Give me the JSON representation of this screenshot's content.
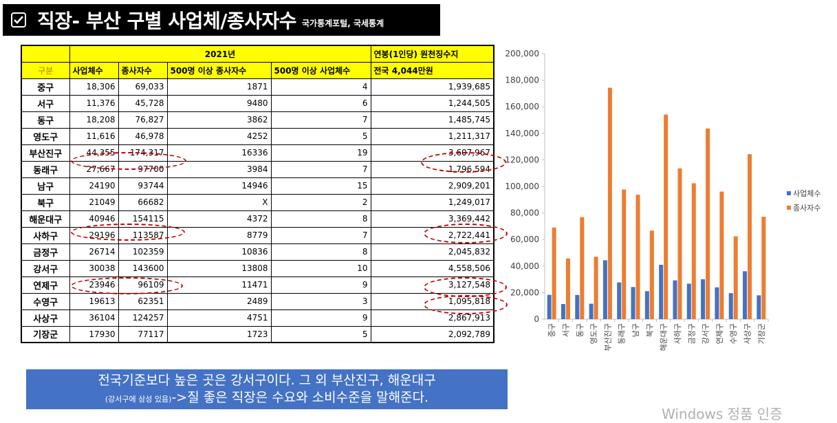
{
  "title": {
    "main": "직장- 부산 구별 사업체/종사자수",
    "source": "국가통계포털, 국세통계"
  },
  "table": {
    "year_header": "2021년",
    "salary_header": "연봉(1인당) 원천징수지",
    "gubun_header": "구분",
    "col_headers": [
      "사업체수",
      "종사자수",
      "500명 이상 종사자수",
      "500명 이상 사업체수",
      "전국 4,044만원"
    ],
    "rows": [
      {
        "name": "중구",
        "biz": "18,306",
        "emp": "69,033",
        "emp500": "1871",
        "biz500": "4",
        "salary": "1,939,685"
      },
      {
        "name": "서구",
        "biz": "11,376",
        "emp": "45,728",
        "emp500": "9480",
        "biz500": "6",
        "salary": "1,244,505"
      },
      {
        "name": "동구",
        "biz": "18,208",
        "emp": "76,827",
        "emp500": "3862",
        "biz500": "7",
        "salary": "1,485,745"
      },
      {
        "name": "영도구",
        "biz": "11,616",
        "emp": "46,978",
        "emp500": "4252",
        "biz500": "5",
        "salary": "1,211,317"
      },
      {
        "name": "부산진구",
        "biz": "44,355",
        "emp": "174,317",
        "emp500": "16336",
        "biz500": "19",
        "salary": "3,607,967"
      },
      {
        "name": "동래구",
        "biz": "27,667",
        "emp": "97700",
        "emp500": "3984",
        "biz500": "7",
        "salary": "1,796,594"
      },
      {
        "name": "남구",
        "biz": "24190",
        "emp": "93744",
        "emp500": "14946",
        "biz500": "15",
        "salary": "2,909,201"
      },
      {
        "name": "북구",
        "biz": "21049",
        "emp": "66682",
        "emp500": "X",
        "biz500": "2",
        "salary": "1,249,017"
      },
      {
        "name": "해운대구",
        "biz": "40946",
        "emp": "154115",
        "emp500": "4372",
        "biz500": "8",
        "salary": "3,369,442"
      },
      {
        "name": "사하구",
        "biz": "29196",
        "emp": "113587",
        "emp500": "8779",
        "biz500": "7",
        "salary": "2,722,441"
      },
      {
        "name": "금정구",
        "biz": "26714",
        "emp": "102359",
        "emp500": "10836",
        "biz500": "8",
        "salary": "2,045,832"
      },
      {
        "name": "강서구",
        "biz": "30038",
        "emp": "143600",
        "emp500": "13808",
        "biz500": "10",
        "salary": "4,558,506"
      },
      {
        "name": "연제구",
        "biz": "23946",
        "emp": "96109",
        "emp500": "11471",
        "biz500": "9",
        "salary": "3,127,548"
      },
      {
        "name": "수영구",
        "biz": "19613",
        "emp": "62351",
        "emp500": "2489",
        "biz500": "3",
        "salary": "1,095,818"
      },
      {
        "name": "사상구",
        "biz": "36104",
        "emp": "124257",
        "emp500": "4751",
        "biz500": "9",
        "salary": "2,867,913"
      },
      {
        "name": "기장군",
        "biz": "17930",
        "emp": "77117",
        "emp500": "1723",
        "biz500": "5",
        "salary": "2,092,789"
      }
    ]
  },
  "note": {
    "line1": "전국기준보다 높은 곳은 강서구이다. 그 외 부산진구, 해운대구",
    "line2_small": "(강서구에 삼성 있음)",
    "line2_big": "->질 좋은 직장은 수요와 소비수준을 말해준다."
  },
  "watermark": "Windows 정품 인증",
  "colors": {
    "title_bg": "#000000",
    "header_yellow": "#ffff00",
    "ellipse_red": "#c00000",
    "note_bg": "#4472c4",
    "series_biz": "#4472c4",
    "series_emp": "#ed7d31"
  },
  "chart_data": {
    "type": "bar",
    "categories": [
      "중구",
      "서구",
      "동구",
      "영도구",
      "부산진구",
      "동래구",
      "남구",
      "북구",
      "해운대구",
      "사하구",
      "금정구",
      "강서구",
      "연제구",
      "수영구",
      "사상구",
      "기장군"
    ],
    "series": [
      {
        "name": "사업체수",
        "values": [
          18306,
          11376,
          18208,
          11616,
          44355,
          27667,
          24190,
          21049,
          40946,
          29196,
          26714,
          30038,
          23946,
          19613,
          36104,
          17930
        ]
      },
      {
        "name": "종사자수",
        "values": [
          69033,
          45728,
          76827,
          46978,
          174317,
          97700,
          93744,
          66682,
          154115,
          113587,
          102359,
          143600,
          96109,
          62351,
          124257,
          77117
        ]
      }
    ],
    "yticks": [
      "0",
      "20,000",
      "40,000",
      "60,000",
      "80,000",
      "100,000",
      "120,000",
      "140,000",
      "160,000",
      "180,000",
      "200,000"
    ],
    "ylim": [
      0,
      200000
    ],
    "grid": false,
    "legend_position": "right"
  }
}
